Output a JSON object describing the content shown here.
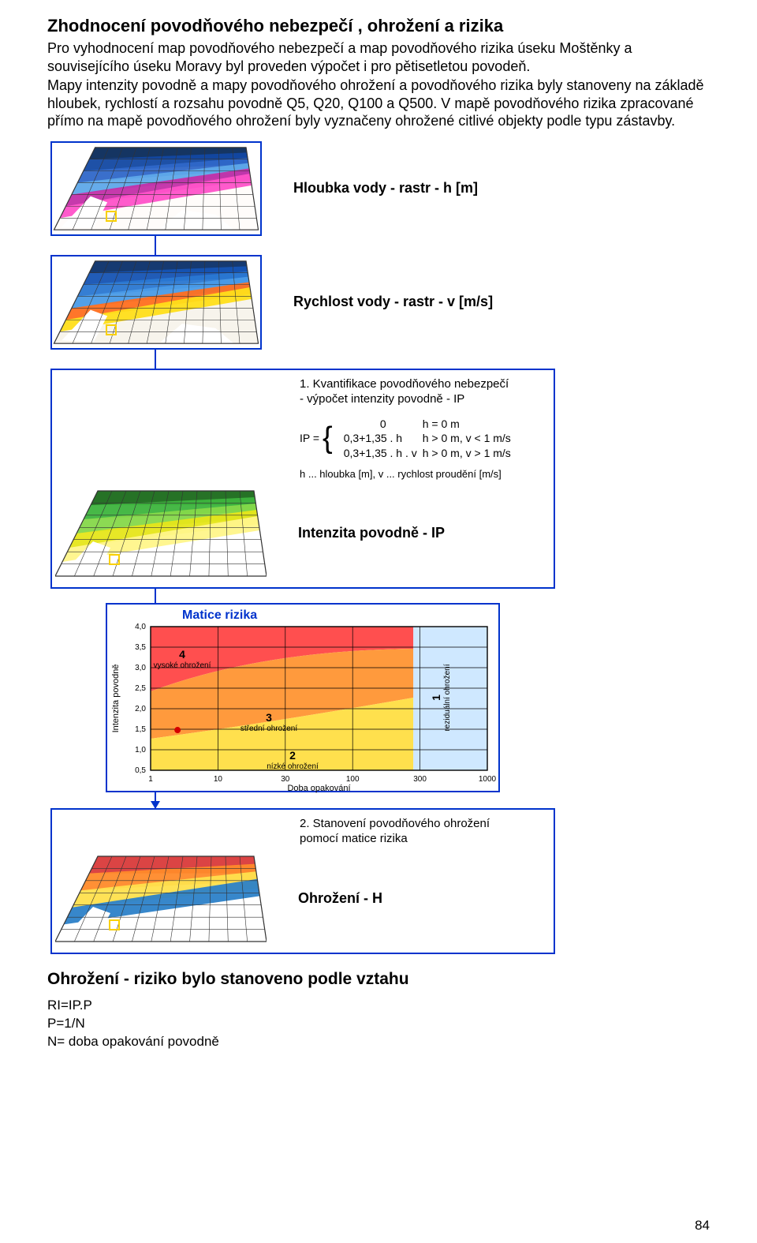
{
  "heading1": "Zhodnocení povodňového nebezpečí , ohrožení a rizika",
  "para1": "Pro vyhodnocení map povodňového nebezpečí a map povodňového rizika úseku Moštěnky a souvisejícího úseku Moravy byl proveden výpočet i pro pětisetletou povodeň.",
  "para2": "Mapy intenzity povodně a mapy povodňového ohrožení a povodňového rizika byly stanoveny na základě hloubek, rychlostí a rozsahu povodně Q5, Q20, Q100 a Q500. V mapě povodňového rizika zpracované přímo na mapě povodňového ohrožení byly vyznačeny ohrožené citlivé objekty podle typu zástavby.",
  "labels": {
    "depth": "Hloubka vody - rastr - h [m]",
    "velocity": "Rychlost vody - rastr - v [m/s]",
    "intensity": "Intenzita povodně - IP",
    "hazard": "Ohrožení - H",
    "matrix_title": "Matice rizika"
  },
  "caption1_line1": "1. Kvantifikace povodňového nebezpečí",
  "caption1_line2": "   - výpočet intenzity povodně - IP",
  "formula": {
    "lhs": "IP =",
    "r1a": "0",
    "r1b": "h = 0 m",
    "r2a": "0,3+1,35 . h",
    "r2b": "h > 0 m, v < 1 m/s",
    "r3a": "0,3+1,35 . h . v",
    "r3b": "h > 0 m, v > 1 m/s",
    "note": "h ... hloubka [m], v ... rychlost proudění [m/s]"
  },
  "caption2_line1": "2. Stanovení povodňového ohrožení",
  "caption2_line2": "    pomocí matice rizika",
  "matrix": {
    "x_label": "Doba opakování",
    "y_label": "Intenzita povodně",
    "x_ticks": [
      "1",
      "10",
      "30",
      "100",
      "300",
      "1000"
    ],
    "y_ticks": [
      "0,5",
      "1,0",
      "1,5",
      "2,0",
      "2,5",
      "3,0",
      "3,5",
      "4,0"
    ],
    "zones": [
      {
        "label": "4",
        "sub": "vysoké ohrožení",
        "color": "#ff4f4f"
      },
      {
        "label": "3",
        "sub": "střední ohrožení",
        "color": "#ff9a3d"
      },
      {
        "label": "2",
        "sub": "nízké ohrožení",
        "color": "#ffe04d"
      },
      {
        "label": "1",
        "sub": "reziduální ohrožení",
        "color": "#cfe8ff",
        "vertical": true
      }
    ]
  },
  "tiles": {
    "depth_colors": [
      "#082a5a",
      "#1248a2",
      "#2f67c8",
      "#5ea8e9",
      "#c32fa8",
      "#ff52c9",
      "#fffcfa"
    ],
    "velocity_colors": [
      "#0a2f6a",
      "#1553b4",
      "#2a77d2",
      "#4a9be8",
      "#ff6f20",
      "#ffde1a",
      "#f7f4ec"
    ],
    "intensity_colors": [
      "#1a6a1a",
      "#3db43d",
      "#86d84a",
      "#e6e61a",
      "#fff68a",
      "#ffffff"
    ],
    "hazard_colors": [
      "#d93a3a",
      "#ff8a2a",
      "#ffe04d",
      "#2c81c8",
      "#ffffff"
    ],
    "grid_color": "#333333"
  },
  "footer_heading": "Ohrožení - riziko bylo stanoveno podle vztahu",
  "footer_eq1": "RI=IP.P",
  "footer_eq2": "P=1/N",
  "footer_eq3": "N= doba opakování povodně",
  "page_number": "84"
}
